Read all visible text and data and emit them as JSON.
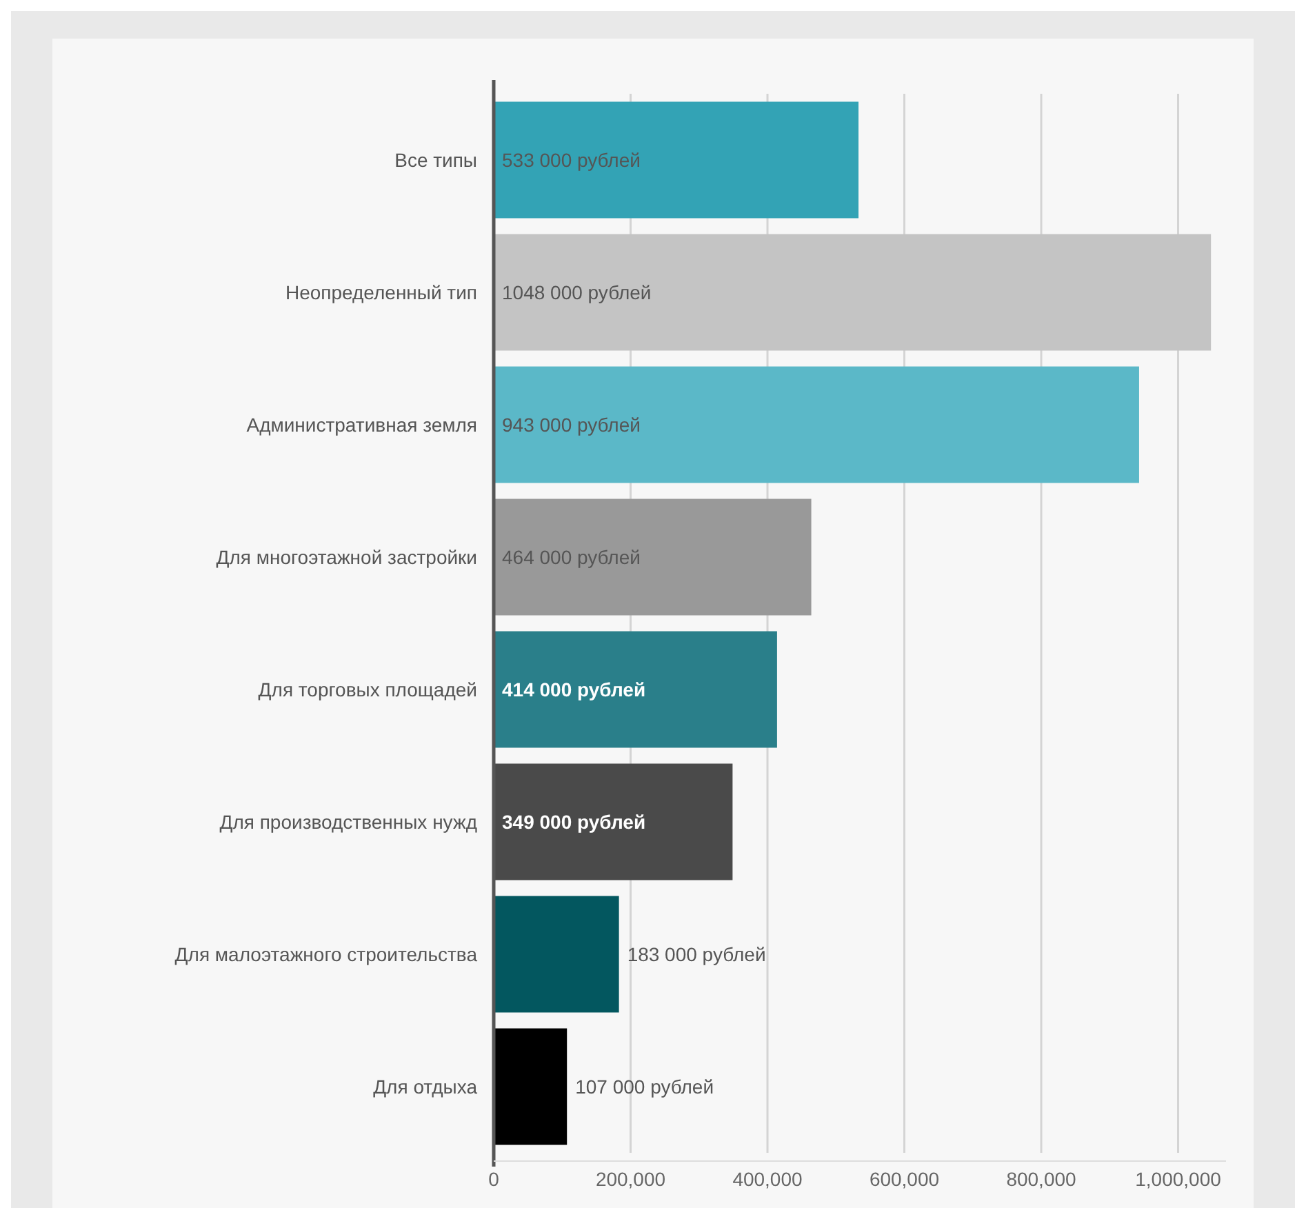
{
  "chart_data": {
    "type": "bar",
    "orientation": "horizontal",
    "categories": [
      "Все типы",
      "Неопределенный тип",
      "Административная земля",
      "Для многоэтажной застройки",
      "Для торговых площадей",
      "Для производственных нужд",
      "Для малоэтажного строительства",
      "Для отдыха"
    ],
    "values": [
      533000,
      1048000,
      943000,
      464000,
      414000,
      349000,
      183000,
      107000
    ],
    "colors": [
      "#33a3b5",
      "#c4c4c4",
      "#5bb8c8",
      "#999999",
      "#2a7f8a",
      "#4a4a4a",
      "#03575f",
      "#000000"
    ],
    "value_labels": [
      "533 000 рублей",
      "1048 000 рублей",
      "943 000 рублей",
      "464 000 рублей",
      "414 000 рублей",
      "349 000 рублей",
      "183 000 рублей",
      "107 000 рублей"
    ],
    "xlim": [
      0,
      1070000
    ],
    "xticks": [
      0,
      {
        "value": 200000,
        "label": "200,000"
      },
      {
        "value": 400000,
        "label": "400,000"
      },
      {
        "value": 600000,
        "label": "600,000"
      },
      {
        "value": 800000,
        "label": "800,000"
      },
      {
        "value": 1000000,
        "label": "1,000,000"
      }
    ],
    "grid": "x"
  }
}
